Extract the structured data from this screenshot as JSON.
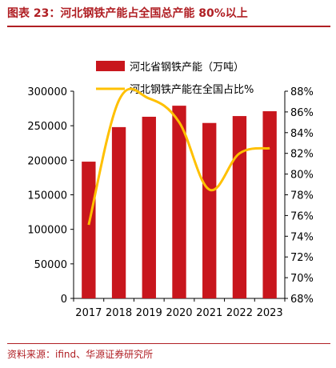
{
  "header": {
    "title": "图表 23：河北钢铁产能占全国总产能 80%以上"
  },
  "source": {
    "text": "资料来源：ifind、华源证券研究所"
  },
  "colors": {
    "title": "#b01f24",
    "bar": "#c8161d",
    "line": "#ffc000",
    "axis": "#000000"
  },
  "chart_data": {
    "type": "bar",
    "categories": [
      "2017",
      "2018",
      "2019",
      "2020",
      "2021",
      "2022",
      "2023"
    ],
    "series": [
      {
        "name": "河北省钢铁产能（万吨）",
        "type": "bar",
        "axis": "left",
        "values": [
          198000,
          248000,
          263000,
          279000,
          254000,
          264000,
          271000
        ]
      },
      {
        "name": "河北钢铁产能在全国占比%",
        "type": "line",
        "axis": "right",
        "values": [
          75.1,
          87.1,
          87.3,
          85.0,
          78.5,
          82.0,
          82.5
        ]
      }
    ],
    "y_left": {
      "min": 0,
      "max": 300000,
      "ticks": [
        "0",
        "50000",
        "100000",
        "150000",
        "200000",
        "250000",
        "300000"
      ]
    },
    "y_right": {
      "min": 68,
      "max": 88,
      "ticks": [
        "68%",
        "70%",
        "72%",
        "74%",
        "76%",
        "78%",
        "80%",
        "82%",
        "84%",
        "86%",
        "88%"
      ]
    },
    "legend_position": "top",
    "grid": false
  }
}
